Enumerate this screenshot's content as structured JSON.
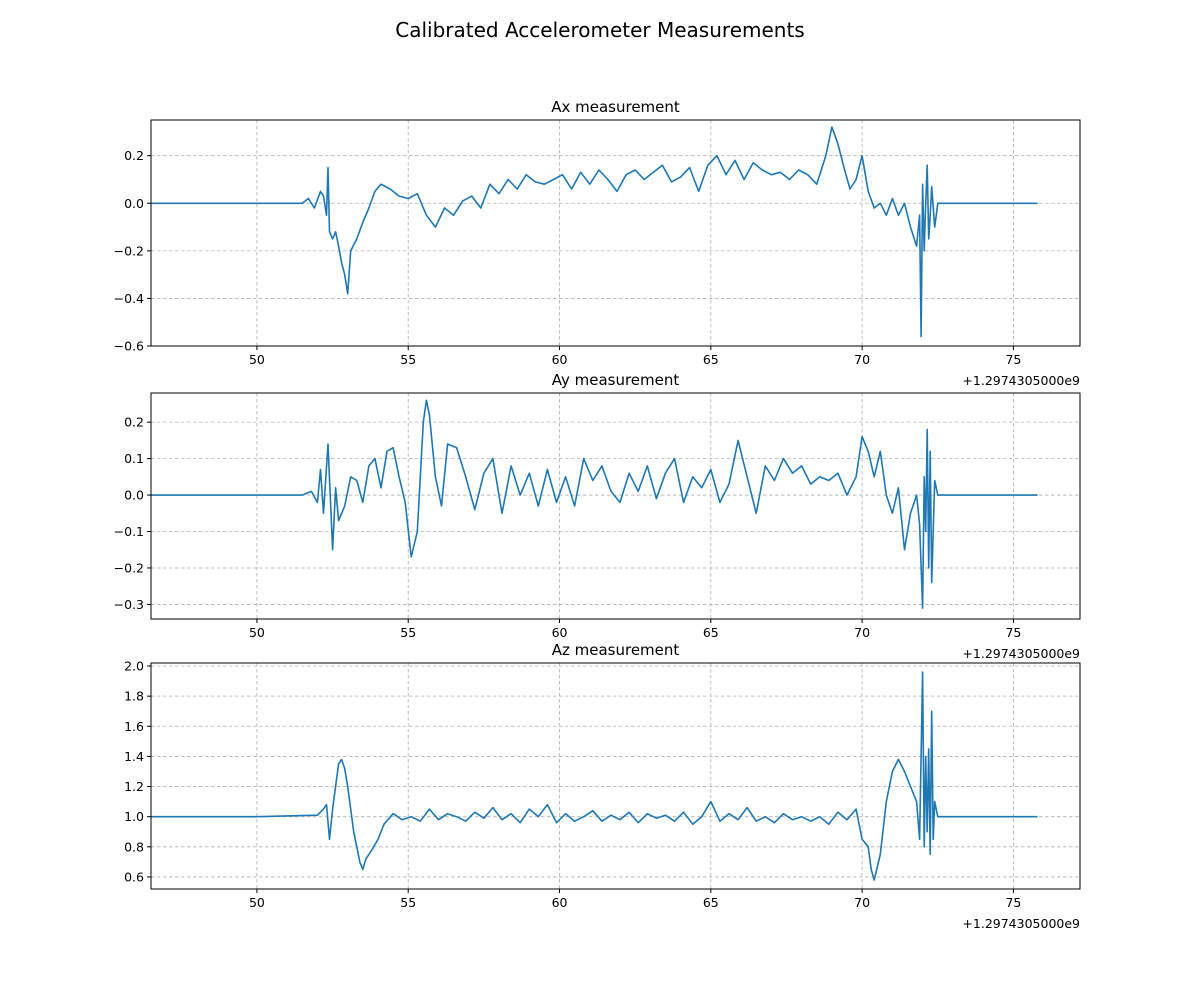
{
  "figure_title": "Calibrated Accelerometer Measurements",
  "colors": {
    "series": "#1f77b4",
    "grid": "#b0b0b0"
  },
  "chart_data": [
    {
      "type": "line",
      "title": "Ax measurement",
      "xlabel": "",
      "ylabel": "",
      "x_offset_label": "+1.2974305000e9",
      "xlim": [
        46.5,
        77.2
      ],
      "ylim": [
        -0.6,
        0.35
      ],
      "xticks": [
        50,
        55,
        60,
        65,
        70,
        75
      ],
      "xtick_labels": [
        "50",
        "55",
        "60",
        "65",
        "70",
        "75"
      ],
      "yticks": [
        -0.6,
        -0.4,
        -0.2,
        0.0,
        0.2
      ],
      "ytick_labels": [
        "−0.6",
        "−0.4",
        "−0.2",
        "0.0",
        "0.2"
      ],
      "grid": true,
      "series": [
        {
          "x": [
            46.5,
            51.5,
            51.7,
            51.9,
            52.1,
            52.2,
            52.3,
            52.35,
            52.4,
            52.5,
            52.6,
            52.7,
            52.8,
            52.9,
            53.0,
            53.1,
            53.3,
            53.5,
            53.7,
            53.9,
            54.1,
            54.4,
            54.7,
            55.0,
            55.3,
            55.6,
            55.9,
            56.2,
            56.5,
            56.8,
            57.1,
            57.4,
            57.7,
            58.0,
            58.3,
            58.6,
            58.9,
            59.2,
            59.5,
            59.8,
            60.1,
            60.4,
            60.7,
            61.0,
            61.3,
            61.6,
            61.9,
            62.2,
            62.5,
            62.8,
            63.1,
            63.4,
            63.7,
            64.0,
            64.3,
            64.6,
            64.9,
            65.2,
            65.5,
            65.8,
            66.1,
            66.4,
            66.7,
            67.0,
            67.3,
            67.6,
            67.9,
            68.2,
            68.5,
            68.8,
            69.0,
            69.2,
            69.4,
            69.6,
            69.8,
            70.0,
            70.2,
            70.4,
            70.6,
            70.8,
            71.0,
            71.2,
            71.4,
            71.6,
            71.8,
            71.9,
            71.95,
            72.0,
            72.05,
            72.1,
            72.15,
            72.2,
            72.25,
            72.3,
            72.4,
            72.5,
            73.0,
            74.0,
            75.0,
            75.8
          ],
          "y": [
            0.0,
            0.0,
            0.02,
            -0.02,
            0.05,
            0.03,
            -0.05,
            0.15,
            -0.12,
            -0.15,
            -0.12,
            -0.18,
            -0.25,
            -0.3,
            -0.38,
            -0.2,
            -0.15,
            -0.08,
            -0.02,
            0.05,
            0.08,
            0.06,
            0.03,
            0.02,
            0.04,
            -0.05,
            -0.1,
            -0.02,
            -0.05,
            0.01,
            0.03,
            -0.02,
            0.08,
            0.04,
            0.1,
            0.06,
            0.12,
            0.09,
            0.08,
            0.1,
            0.12,
            0.06,
            0.13,
            0.08,
            0.14,
            0.1,
            0.05,
            0.12,
            0.14,
            0.1,
            0.13,
            0.16,
            0.09,
            0.11,
            0.15,
            0.05,
            0.16,
            0.2,
            0.12,
            0.18,
            0.1,
            0.17,
            0.14,
            0.12,
            0.13,
            0.1,
            0.14,
            0.12,
            0.08,
            0.2,
            0.32,
            0.25,
            0.15,
            0.06,
            0.1,
            0.2,
            0.05,
            -0.02,
            0.0,
            -0.05,
            0.02,
            -0.05,
            0.0,
            -0.1,
            -0.18,
            -0.05,
            -0.56,
            0.08,
            -0.2,
            0.0,
            0.16,
            -0.15,
            -0.05,
            0.07,
            -0.1,
            0.0,
            0.0,
            0.0,
            0.0,
            0.0
          ]
        }
      ]
    },
    {
      "type": "line",
      "title": "Ay measurement",
      "xlabel": "",
      "ylabel": "",
      "x_offset_label": "+1.2974305000e9",
      "xlim": [
        46.5,
        77.2
      ],
      "ylim": [
        -0.34,
        0.28
      ],
      "xticks": [
        50,
        55,
        60,
        65,
        70,
        75
      ],
      "xtick_labels": [
        "50",
        "55",
        "60",
        "65",
        "70",
        "75"
      ],
      "yticks": [
        -0.3,
        -0.2,
        -0.1,
        0.0,
        0.1,
        0.2
      ],
      "ytick_labels": [
        "−0.3",
        "−0.2",
        "−0.1",
        "0.0",
        "0.1",
        "0.2"
      ],
      "grid": true,
      "series": [
        {
          "x": [
            46.5,
            51.5,
            51.8,
            52.0,
            52.1,
            52.2,
            52.35,
            52.5,
            52.6,
            52.7,
            52.9,
            53.1,
            53.3,
            53.5,
            53.7,
            53.9,
            54.1,
            54.3,
            54.5,
            54.7,
            54.9,
            55.1,
            55.3,
            55.5,
            55.6,
            55.7,
            55.9,
            56.1,
            56.3,
            56.6,
            56.9,
            57.2,
            57.5,
            57.8,
            58.1,
            58.4,
            58.7,
            59.0,
            59.3,
            59.6,
            59.9,
            60.2,
            60.5,
            60.8,
            61.1,
            61.4,
            61.7,
            62.0,
            62.3,
            62.6,
            62.9,
            63.2,
            63.5,
            63.8,
            64.1,
            64.4,
            64.7,
            65.0,
            65.3,
            65.6,
            65.9,
            66.2,
            66.5,
            66.8,
            67.1,
            67.4,
            67.7,
            68.0,
            68.3,
            68.6,
            68.9,
            69.2,
            69.5,
            69.8,
            70.0,
            70.2,
            70.4,
            70.6,
            70.8,
            71.0,
            71.2,
            71.4,
            71.6,
            71.8,
            71.9,
            72.0,
            72.05,
            72.1,
            72.15,
            72.2,
            72.25,
            72.3,
            72.4,
            72.5,
            73.0,
            74.0,
            75.0,
            75.8
          ],
          "y": [
            0.0,
            0.0,
            0.01,
            -0.02,
            0.07,
            -0.05,
            0.14,
            -0.15,
            0.02,
            -0.07,
            -0.03,
            0.05,
            0.04,
            -0.02,
            0.08,
            0.1,
            0.02,
            0.12,
            0.13,
            0.05,
            -0.02,
            -0.17,
            -0.1,
            0.2,
            0.26,
            0.22,
            0.05,
            -0.03,
            0.14,
            0.13,
            0.05,
            -0.04,
            0.06,
            0.1,
            -0.05,
            0.08,
            0.0,
            0.06,
            -0.03,
            0.07,
            -0.02,
            0.05,
            -0.03,
            0.1,
            0.04,
            0.08,
            0.01,
            -0.02,
            0.06,
            0.01,
            0.08,
            -0.01,
            0.06,
            0.1,
            -0.02,
            0.05,
            0.02,
            0.07,
            -0.02,
            0.03,
            0.15,
            0.05,
            -0.05,
            0.08,
            0.04,
            0.1,
            0.06,
            0.08,
            0.03,
            0.05,
            0.04,
            0.06,
            0.0,
            0.05,
            0.16,
            0.12,
            0.05,
            0.12,
            0.0,
            -0.05,
            0.02,
            -0.15,
            -0.05,
            0.0,
            -0.08,
            -0.31,
            0.05,
            -0.1,
            0.18,
            -0.2,
            0.12,
            -0.24,
            0.04,
            0.0,
            0.0,
            0.0,
            0.0,
            0.0
          ]
        }
      ]
    },
    {
      "type": "line",
      "title": "Az measurement",
      "xlabel": "",
      "ylabel": "",
      "x_offset_label": "+1.2974305000e9",
      "xlim": [
        46.5,
        77.2
      ],
      "ylim": [
        0.52,
        2.02
      ],
      "xticks": [
        50,
        55,
        60,
        65,
        70,
        75
      ],
      "xtick_labels": [
        "50",
        "55",
        "60",
        "65",
        "70",
        "75"
      ],
      "yticks": [
        0.6,
        0.8,
        1.0,
        1.2,
        1.4,
        1.6,
        1.8,
        2.0
      ],
      "ytick_labels": [
        "0.6",
        "0.8",
        "1.0",
        "1.2",
        "1.4",
        "1.6",
        "1.8",
        "2.0"
      ],
      "grid": true,
      "series": [
        {
          "x": [
            46.5,
            48.0,
            50.0,
            52.0,
            52.2,
            52.3,
            52.4,
            52.5,
            52.6,
            52.7,
            52.8,
            52.9,
            53.0,
            53.1,
            53.2,
            53.3,
            53.4,
            53.5,
            53.6,
            53.8,
            54.0,
            54.2,
            54.5,
            54.8,
            55.1,
            55.4,
            55.7,
            56.0,
            56.3,
            56.6,
            56.9,
            57.2,
            57.5,
            57.8,
            58.1,
            58.4,
            58.7,
            59.0,
            59.3,
            59.6,
            59.9,
            60.2,
            60.5,
            60.8,
            61.1,
            61.4,
            61.7,
            62.0,
            62.3,
            62.6,
            62.9,
            63.2,
            63.5,
            63.8,
            64.1,
            64.4,
            64.7,
            65.0,
            65.3,
            65.6,
            65.9,
            66.2,
            66.5,
            66.8,
            67.1,
            67.4,
            67.7,
            68.0,
            68.3,
            68.6,
            68.9,
            69.2,
            69.5,
            69.8,
            70.0,
            70.2,
            70.3,
            70.4,
            70.6,
            70.8,
            71.0,
            71.2,
            71.4,
            71.6,
            71.8,
            71.9,
            72.0,
            72.05,
            72.1,
            72.15,
            72.2,
            72.25,
            72.3,
            72.35,
            72.4,
            72.5,
            73.0,
            74.0,
            75.0,
            75.8
          ],
          "y": [
            1.0,
            1.0,
            1.0,
            1.01,
            1.05,
            1.08,
            0.85,
            1.05,
            1.2,
            1.35,
            1.38,
            1.32,
            1.2,
            1.05,
            0.9,
            0.8,
            0.7,
            0.65,
            0.72,
            0.78,
            0.85,
            0.95,
            1.02,
            0.98,
            1.0,
            0.97,
            1.05,
            0.98,
            1.02,
            1.0,
            0.97,
            1.03,
            0.99,
            1.06,
            0.98,
            1.02,
            0.96,
            1.05,
            1.0,
            1.08,
            0.96,
            1.02,
            0.97,
            1.0,
            1.04,
            0.97,
            1.01,
            0.98,
            1.03,
            0.96,
            1.02,
            0.99,
            1.01,
            0.97,
            1.03,
            0.95,
            1.0,
            1.1,
            0.97,
            1.02,
            0.98,
            1.06,
            0.97,
            1.0,
            0.96,
            1.02,
            0.98,
            1.0,
            0.97,
            1.0,
            0.95,
            1.03,
            0.98,
            1.05,
            0.85,
            0.8,
            0.65,
            0.58,
            0.75,
            1.1,
            1.3,
            1.38,
            1.3,
            1.2,
            1.1,
            0.85,
            1.96,
            0.8,
            1.4,
            0.9,
            1.45,
            0.75,
            1.7,
            0.85,
            1.1,
            1.0,
            1.0,
            1.0,
            1.0,
            1.0
          ]
        }
      ]
    }
  ]
}
